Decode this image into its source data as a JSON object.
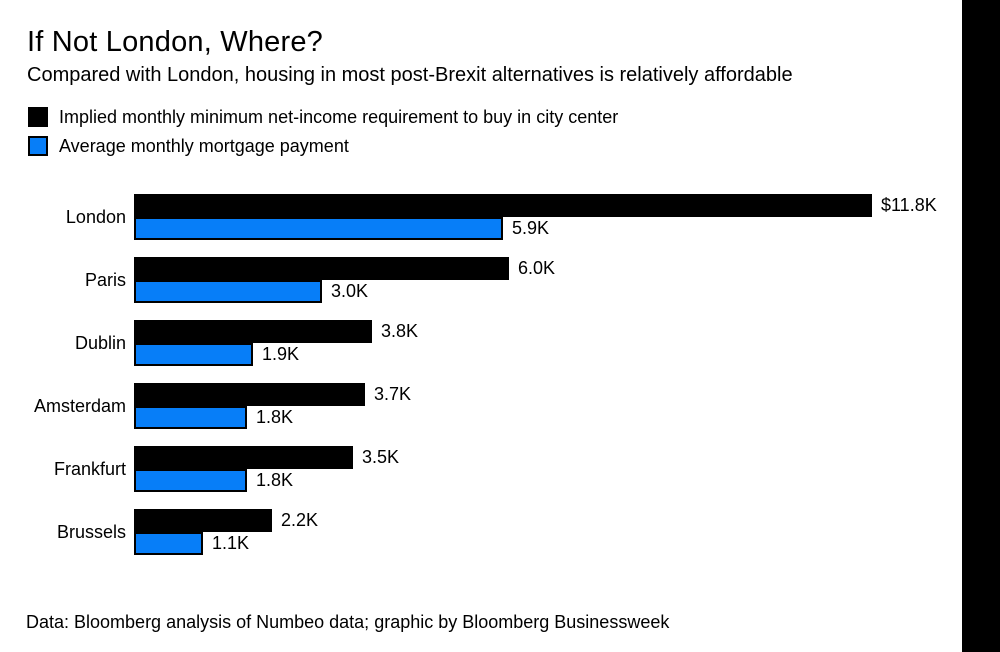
{
  "header": {
    "title": "If Not London, Where?",
    "subtitle": "Compared with London, housing in most post-Brexit alternatives is relatively affordable"
  },
  "legend": {
    "items": [
      {
        "label": "Implied monthly minimum net-income requirement to buy in city center",
        "color": "#000000"
      },
      {
        "label": "Average monthly mortgage payment",
        "color": "#077ef8"
      }
    ]
  },
  "footer": {
    "source": "Data: Bloomberg analysis of Numbeo data; graphic by Bloomberg Businessweek"
  },
  "colors": {
    "income_bar": "#000000",
    "mortgage_bar": "#077ef8",
    "background": "#ffffff",
    "edge_strip": "#000000"
  },
  "chart_data": {
    "type": "bar",
    "orientation": "horizontal",
    "title": "If Not London, Where?",
    "subtitle": "Compared with London, housing in most post-Brexit alternatives is relatively affordable",
    "categories": [
      "London",
      "Paris",
      "Dublin",
      "Amsterdam",
      "Frankfurt",
      "Brussels"
    ],
    "series": [
      {
        "name": "Implied monthly minimum net-income requirement to buy in city center",
        "color": "#000000",
        "values": [
          11.8,
          6.0,
          3.8,
          3.7,
          3.5,
          2.2
        ],
        "display_values": [
          "$11.8K",
          "6.0K",
          "3.8K",
          "3.7K",
          "3.5K",
          "2.2K"
        ]
      },
      {
        "name": "Average monthly mortgage payment",
        "color": "#077ef8",
        "values": [
          5.9,
          3.0,
          1.9,
          1.8,
          1.8,
          1.1
        ],
        "display_values": [
          "5.9K",
          "3.0K",
          "1.9K",
          "1.8K",
          "1.8K",
          "1.1K"
        ]
      }
    ],
    "xlim": [
      0,
      11.8
    ],
    "grid": false,
    "legend_position": "top-left",
    "value_labels_shown": true,
    "source_note": "Data: Bloomberg analysis of Numbeo data; graphic by Bloomberg Businessweek"
  }
}
